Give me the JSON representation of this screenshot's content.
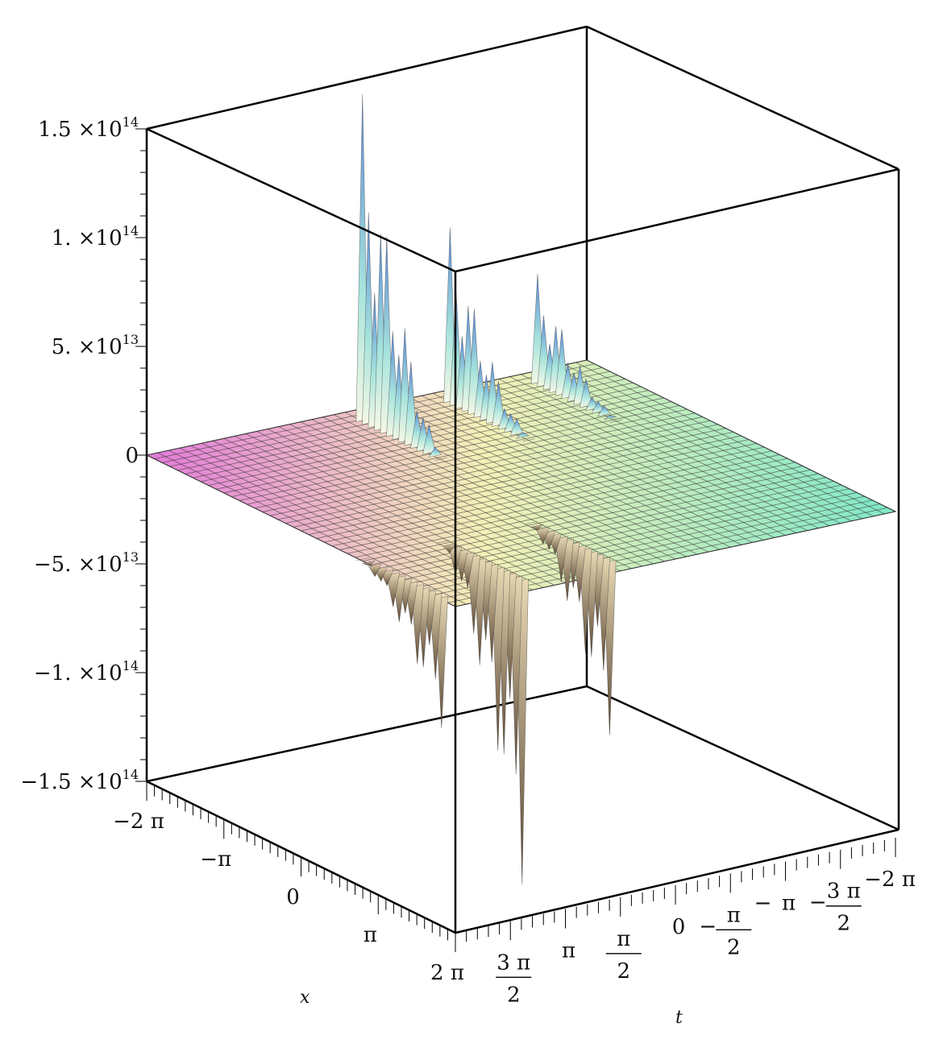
{
  "chart_data": {
    "type": "surface3d",
    "xlabel": "x",
    "ylabel": "t",
    "zlabel": "",
    "xlim": [
      "-2π",
      "2π"
    ],
    "ylim": [
      "-2π",
      "2π"
    ],
    "zlim": [
      -150000000000000.0,
      150000000000000.0
    ],
    "grid": true,
    "colors": {
      "low_t_side": "#e27ad9",
      "mid": "#f4f0b8",
      "high_t_side": "#7fe7c8",
      "peak_top": "#5b88d8",
      "trough_bottom": "#5a4633"
    },
    "z_ticks": [
      {
        "mantissa": "1.5 ×",
        "exp": "14",
        "value": 150000000000000.0
      },
      {
        "mantissa": "1. ×",
        "exp": "14",
        "value": 100000000000000.0
      },
      {
        "mantissa": "5. ×",
        "exp": "13",
        "value": 50000000000000.0
      },
      {
        "mantissa": "0",
        "exp": "",
        "value": 0
      },
      {
        "mantissa": "−5. ×",
        "exp": "13",
        "value": -50000000000000.0
      },
      {
        "mantissa": "−1. ×",
        "exp": "14",
        "value": -100000000000000.0
      },
      {
        "mantissa": "−1.5 ×",
        "exp": "14",
        "value": -150000000000000.0
      }
    ],
    "x_ticks": [
      {
        "label": "−2 π",
        "value": -6.2832
      },
      {
        "label": "−π",
        "value": -3.1416
      },
      {
        "label": "0",
        "value": 0
      },
      {
        "label": "π",
        "value": 3.1416
      },
      {
        "label": "2 π",
        "value": 6.2832
      }
    ],
    "t_ticks": [
      {
        "label": "3 π",
        "denom": "2",
        "sign": "",
        "value": 4.7124
      },
      {
        "label": "π",
        "denom": "",
        "sign": "",
        "value": 3.1416
      },
      {
        "label": "π",
        "denom": "2",
        "sign": "",
        "value": 1.5708
      },
      {
        "label": "0",
        "denom": "",
        "sign": "",
        "value": 0
      },
      {
        "label": "π",
        "denom": "2",
        "sign": "−",
        "value": -1.5708
      },
      {
        "label": "π",
        "denom": "",
        "sign": "−",
        "value": -3.1416
      },
      {
        "label": "3 π",
        "denom": "2",
        "sign": "−",
        "value": -4.7124
      },
      {
        "label": "2 π",
        "denom": "",
        "sign": "−",
        "value": -6.2832
      }
    ],
    "ridges": [
      {
        "x": -5.6,
        "t": 0.6,
        "amplitude": 150000000000000.0,
        "sign": "positive"
      },
      {
        "x": -5.6,
        "t": -1.9,
        "amplitude": 80000000000000.0,
        "sign": "positive"
      },
      {
        "x": -5.6,
        "t": -4.4,
        "amplitude": 50000000000000.0,
        "sign": "positive"
      },
      {
        "x": 5.6,
        "t": 3.9,
        "amplitude": -140000000000000.0,
        "sign": "negative"
      },
      {
        "x": 5.6,
        "t": 6.2,
        "amplitude": -60000000000000.0,
        "sign": "negative"
      },
      {
        "x": 5.6,
        "t": 1.4,
        "amplitude": -80000000000000.0,
        "sign": "negative"
      }
    ]
  }
}
